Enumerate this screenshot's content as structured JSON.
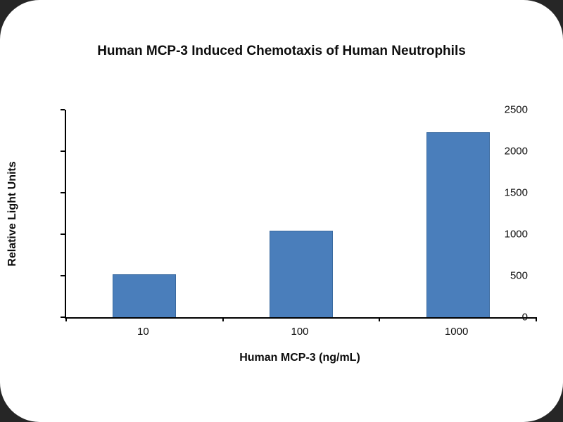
{
  "chart_data": {
    "type": "bar",
    "title": "Human MCP-3 Induced Chemotaxis of Human Neutrophils",
    "xlabel": "Human MCP-3 (ng/mL)",
    "ylabel": "Relative Light Units",
    "categories": [
      "10",
      "100",
      "1000"
    ],
    "values": [
      520,
      1040,
      2230
    ],
    "ylim": [
      0,
      2500
    ],
    "yticks": [
      0,
      500,
      1000,
      1500,
      2000,
      2500
    ],
    "grid": "off",
    "legend": "none"
  },
  "style": {
    "bar_fill": "#4a7ebb",
    "bar_border": "#3a6aa0",
    "axis_color": "#000000",
    "corner_color": "#262626"
  }
}
